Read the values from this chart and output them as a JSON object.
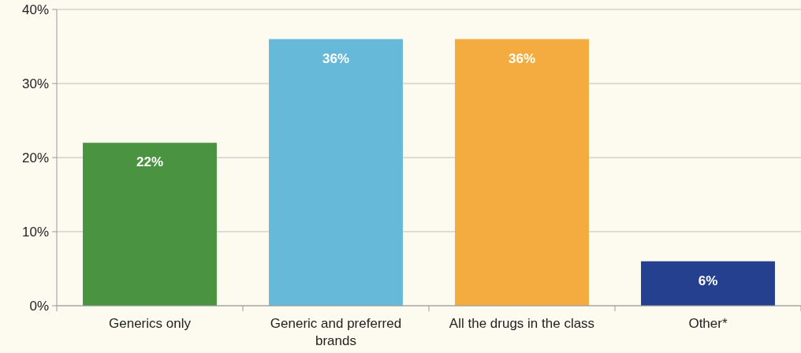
{
  "chart_data": {
    "type": "bar",
    "categories": [
      "Generics only",
      "Generic and preferred brands",
      "All the drugs in the class",
      "Other*"
    ],
    "values": [
      22,
      36,
      36,
      6
    ],
    "colors": [
      "#4a9441",
      "#66b9d9",
      "#f4ac40",
      "#24408f"
    ],
    "value_labels": [
      "22%",
      "36%",
      "36%",
      "6%"
    ],
    "ylim": [
      0,
      40
    ],
    "yticks": [
      {
        "value": 0,
        "label": "0%"
      },
      {
        "value": 10,
        "label": "10%"
      },
      {
        "value": 20,
        "label": "20%"
      },
      {
        "value": 30,
        "label": "30%"
      },
      {
        "value": 40,
        "label": "40%"
      }
    ],
    "grid": "y"
  }
}
